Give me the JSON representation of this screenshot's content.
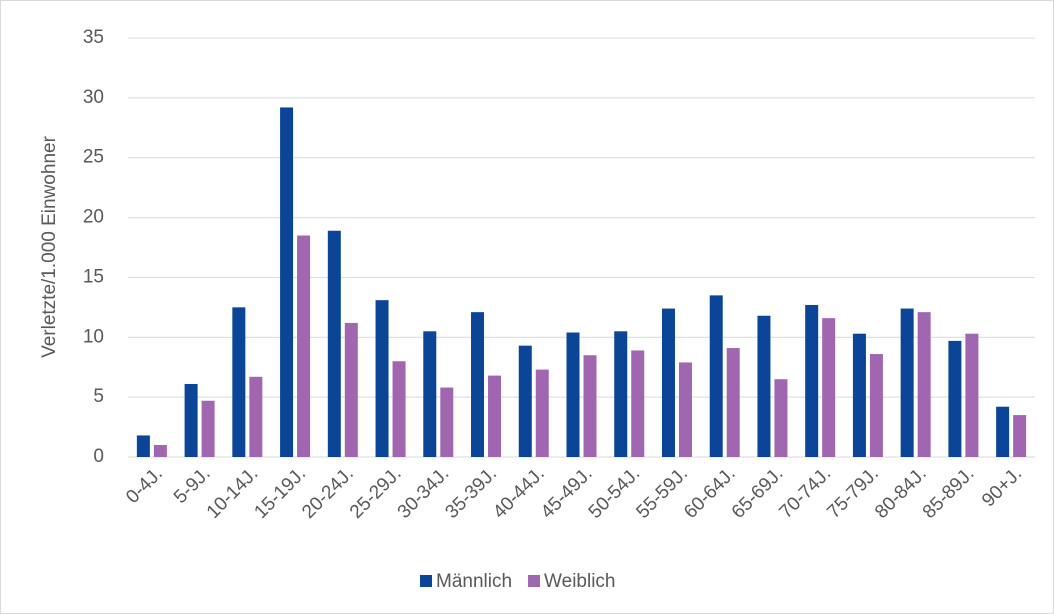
{
  "chart_data": {
    "type": "bar",
    "y_label": "Verletzte/1.000 Einwohner",
    "categories": [
      "0-4J.",
      "5-9J.",
      "10-14J.",
      "15-19J.",
      "20-24J.",
      "25-29J.",
      "30-34J.",
      "35-39J.",
      "40-44J.",
      "45-49J.",
      "50-54J.",
      "55-59J.",
      "60-64J.",
      "65-69J.",
      "70-74J.",
      "75-79J.",
      "80-84J.",
      "85-89J.",
      "90+J."
    ],
    "series": [
      {
        "name": "Männlich",
        "color": "#0a4598",
        "values": [
          1.8,
          6.1,
          12.5,
          29.2,
          18.9,
          13.1,
          10.5,
          12.1,
          9.3,
          10.4,
          10.5,
          12.4,
          13.5,
          11.8,
          12.7,
          10.3,
          12.4,
          9.7,
          4.2
        ]
      },
      {
        "name": "Weiblich",
        "color": "#a066b0",
        "values": [
          1.0,
          4.7,
          6.7,
          18.5,
          11.2,
          8.0,
          5.8,
          6.8,
          7.3,
          8.5,
          8.9,
          7.9,
          9.1,
          6.5,
          11.6,
          8.6,
          12.1,
          10.3,
          3.5
        ]
      }
    ],
    "ylim": [
      0,
      35
    ],
    "yticks": [
      0,
      5,
      10,
      15,
      20,
      25,
      30,
      35
    ],
    "grid": true,
    "legend": "bottom"
  }
}
